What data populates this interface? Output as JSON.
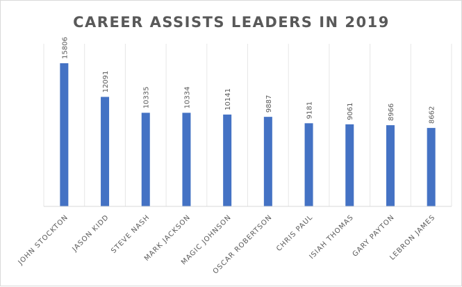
{
  "chart_data": {
    "type": "bar",
    "title": "CAREER ASSISTS LEADERS IN 2019",
    "xlabel": "",
    "ylabel": "",
    "categories": [
      "JOHN STOCKTON",
      "JASON KIDD",
      "STEVE NASH",
      "MARK JACKSON",
      "MAGIC JOHNSON",
      "OSCAR ROBERTSON",
      "CHRIS PAUL",
      "ISIAH THOMAS",
      "GARY PAYTON",
      "LEBRON JAMES"
    ],
    "values": [
      15806,
      12091,
      10335,
      10334,
      10141,
      9887,
      9181,
      9061,
      8966,
      8662
    ],
    "ylim": [
      0,
      15806
    ],
    "data_labels": true,
    "vertical_gridlines": true,
    "legend": "none",
    "bar_color": "#4472c4"
  }
}
